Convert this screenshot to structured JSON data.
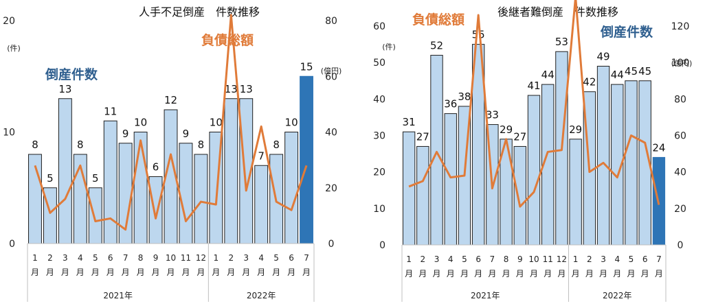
{
  "chart_data": [
    {
      "type": "bar",
      "title": "人手不足倒産　件数推移",
      "y_unit": "(件)",
      "y2_unit": "(億円)",
      "ylim": [
        0,
        20
      ],
      "y_ticks": [
        0,
        10,
        20
      ],
      "y2lim": [
        0,
        80
      ],
      "y2_ticks": [
        0,
        20,
        40,
        60,
        80
      ],
      "series_labels": {
        "bar": "倒産件数",
        "line": "負債総額"
      },
      "month_labels": [
        "1",
        "2",
        "3",
        "4",
        "5",
        "6",
        "7",
        "8",
        "9",
        "10",
        "11",
        "12",
        "1",
        "2",
        "3",
        "4",
        "5",
        "6",
        "7"
      ],
      "month_suffix": "月",
      "years": [
        {
          "label": "2021年",
          "months": 12
        },
        {
          "label": "2022年",
          "months": 7
        }
      ],
      "series": [
        {
          "name": "倒産件数",
          "kind": "bar",
          "values": [
            8,
            5,
            13,
            8,
            5,
            11,
            9,
            10,
            6,
            12,
            9,
            8,
            10,
            13,
            13,
            7,
            8,
            10,
            15
          ]
        },
        {
          "name": "負債総額",
          "kind": "line",
          "values": [
            28,
            11,
            16,
            28,
            8,
            9,
            5,
            37,
            9,
            32,
            8,
            15,
            14,
            82,
            19,
            42,
            15,
            12,
            28
          ]
        }
      ],
      "colors": {
        "bar": "#bdd7ee",
        "bar_highlight": "#2e75b6",
        "line": "#e07b39"
      }
    },
    {
      "type": "bar",
      "title": "後継者難倒産　件数推移",
      "y_unit": "(件)",
      "y2_unit": "(億円)",
      "ylim": [
        0,
        60
      ],
      "y_ticks": [
        0,
        10,
        20,
        30,
        40,
        50,
        60
      ],
      "y2lim": [
        0,
        120
      ],
      "y2_ticks": [
        0,
        20,
        40,
        60,
        80,
        100,
        120
      ],
      "series_labels": {
        "bar": "倒産件数",
        "line": "負債総額"
      },
      "month_labels": [
        "1",
        "2",
        "3",
        "4",
        "5",
        "6",
        "7",
        "8",
        "9",
        "10",
        "11",
        "12",
        "1",
        "2",
        "3",
        "4",
        "5",
        "6",
        "7"
      ],
      "month_suffix": "月",
      "years": [
        {
          "label": "2021年",
          "months": 12
        },
        {
          "label": "2022年",
          "months": 7
        }
      ],
      "series": [
        {
          "name": "倒産件数",
          "kind": "bar",
          "values": [
            31,
            27,
            52,
            36,
            38,
            55,
            33,
            29,
            27,
            41,
            44,
            53,
            29,
            42,
            49,
            44,
            45,
            45,
            24
          ]
        },
        {
          "name": "負債総額",
          "kind": "line",
          "values": [
            32,
            35,
            51,
            37,
            38,
            126,
            31,
            58,
            21,
            29,
            51,
            52,
            136,
            40,
            45,
            37,
            60,
            56,
            22
          ]
        }
      ],
      "colors": {
        "bar": "#bdd7ee",
        "bar_highlight": "#2e75b6",
        "line": "#e07b39"
      }
    }
  ]
}
